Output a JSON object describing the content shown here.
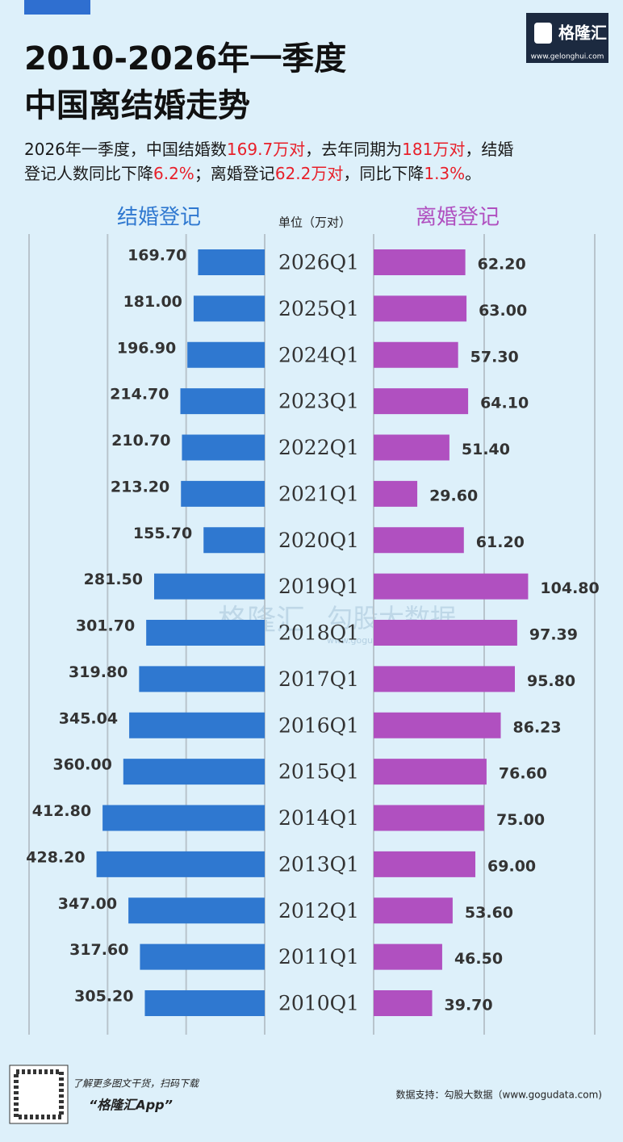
{
  "header": {
    "logo": "格隆汇",
    "logo_url": "www.gelonghui.com"
  },
  "chart_data": {
    "type": "butterfly",
    "title": [
      "2010-2026年一季度",
      "中国离结婚走势"
    ],
    "subtitle": [
      [
        {
          "text": "2026年一季度，中国结婚数",
          "color": "#1a1a1a"
        },
        {
          "text": "169.7万对",
          "color": "#e8202a"
        },
        {
          "text": "，去年同期为",
          "color": "#1a1a1a"
        },
        {
          "text": "181万对",
          "color": "#e8202a"
        },
        {
          "text": "，结婚",
          "color": "#1a1a1a"
        }
      ],
      [
        {
          "text": "登记人数同比下降",
          "color": "#1a1a1a"
        },
        {
          "text": "6.2%",
          "color": "#e8202a"
        },
        {
          "text": "；离婚登记",
          "color": "#1a1a1a"
        },
        {
          "text": "62.2万对",
          "color": "#e8202a"
        },
        {
          "text": "，同比下降",
          "color": "#1a1a1a"
        },
        {
          "text": "1.3%",
          "color": "#e8202a"
        },
        {
          "text": "。",
          "color": "#1a1a1a"
        }
      ]
    ],
    "unit": "单位（万对）",
    "categories": [
      "2026Q1",
      "2025Q1",
      "2024Q1",
      "2023Q1",
      "2022Q1",
      "2021Q1",
      "2020Q1",
      "2019Q1",
      "2018Q1",
      "2017Q1",
      "2016Q1",
      "2015Q1",
      "2014Q1",
      "2013Q1",
      "2012Q1",
      "2011Q1",
      "2010Q1"
    ],
    "series": [
      {
        "name": "结婚登记",
        "color": "#2f78d0",
        "side": "left",
        "values": [
          169.7,
          181,
          196.9,
          214.7,
          210.7,
          213.2,
          155.7,
          281.5,
          301.7,
          319.8,
          345.04,
          360,
          412.8,
          428.2,
          347,
          317.6,
          305.2
        ],
        "value_labels": [
          "169.70",
          "181.00",
          "196.90",
          "214.70",
          "210.70",
          "213.20",
          "155.70",
          "281.50",
          "301.70",
          "319.80",
          "345.04",
          "360.00",
          "412.80",
          "428.20",
          "347.00",
          "317.60",
          "305.20"
        ]
      },
      {
        "name": "离婚登记",
        "color": "#b050c0",
        "side": "right",
        "values": [
          62.2,
          63,
          57.3,
          64.1,
          51.4,
          29.6,
          61.2,
          104.8,
          97.39,
          95.8,
          86.23,
          76.6,
          75,
          69,
          53.6,
          46.5,
          39.7
        ],
        "value_labels": [
          "62.20",
          "63.00",
          "57.30",
          "64.10",
          "51.40",
          "29.60",
          "61.20",
          "104.80",
          "97.39",
          "95.80",
          "86.23",
          "76.60",
          "75.00",
          "69.00",
          "53.60",
          "46.50",
          "39.70"
        ]
      }
    ],
    "left_xlim": [
      0,
      600
    ],
    "left_xticks": [
      0,
      200,
      400,
      600
    ],
    "right_xlim": [
      0,
      150
    ],
    "right_xticks": [
      0,
      75,
      150
    ],
    "grid": true,
    "watermark": [
      "格隆汇",
      "勾股大数据",
      "www.gogudata.com"
    ]
  },
  "footer": {
    "promo": "了解更多图文干货，扫码下载",
    "app": "“格隆汇App”",
    "source": "数据支持：勾股大数据（www.gogudata.com)"
  }
}
